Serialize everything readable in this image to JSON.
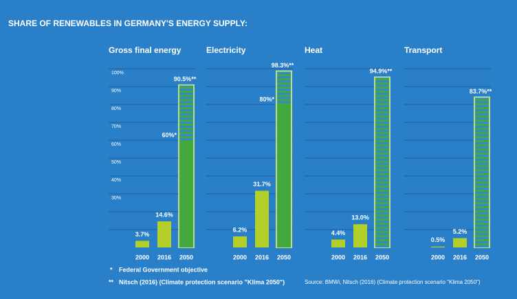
{
  "title": "SHARE OF RENEWABLES IN GERMANY'S ENERGY SUPPLY:",
  "chart_data": [
    {
      "type": "bar",
      "title": "Gross final energy",
      "categories": [
        "2000",
        "2016",
        "2050"
      ],
      "values": [
        3.7,
        14.6,
        90.5
      ],
      "value_labels": [
        "3.7%",
        "14.6%",
        "90.5%**"
      ],
      "objective": {
        "value": 60,
        "label": "60%*"
      },
      "ylim": [
        0,
        100
      ],
      "yticks": [
        {
          "value": 10,
          "label": null
        },
        {
          "value": 20,
          "label": null
        },
        {
          "value": 30,
          "label": "30%"
        },
        {
          "value": 40,
          "label": "40%"
        },
        {
          "value": 50,
          "label": "50%"
        },
        {
          "value": 60,
          "label": "60%"
        },
        {
          "value": 70,
          "label": "70%"
        },
        {
          "value": 80,
          "label": "80%"
        },
        {
          "value": 90,
          "label": "90%"
        },
        {
          "value": 100,
          "label": "100%"
        }
      ],
      "grid": true,
      "colors": [
        "#b5cf2a",
        "#b5cf2a",
        "#45a83e"
      ],
      "stripe_colors": [
        "#45a83e",
        "#3289cc"
      ]
    },
    {
      "type": "bar",
      "title": "Electricity",
      "categories": [
        "2000",
        "2016",
        "2050"
      ],
      "values": [
        6.2,
        31.7,
        98.3
      ],
      "value_labels": [
        "6.2%",
        "31.7%",
        "98.3%**"
      ],
      "objective": {
        "value": 80,
        "label": "80%*"
      },
      "ylim": [
        0,
        100
      ],
      "yticks": [
        10,
        20,
        30,
        40,
        50,
        60,
        70,
        80,
        90,
        100
      ],
      "grid": true,
      "colors": [
        "#b5cf2a",
        "#b5cf2a",
        "#45a83e"
      ],
      "stripe_colors": [
        "#45a83e",
        "#3289cc"
      ]
    },
    {
      "type": "bar",
      "title": "Heat",
      "categories": [
        "2000",
        "2016",
        "2050"
      ],
      "values": [
        4.4,
        13.0,
        94.9
      ],
      "value_labels": [
        "4.4%",
        "13.0%",
        "94.9%**"
      ],
      "ylim": [
        0,
        100
      ],
      "yticks": [
        10,
        20,
        30,
        40,
        50,
        60,
        70,
        80,
        90,
        100
      ],
      "grid": true,
      "colors": [
        "#b5cf2a",
        "#b5cf2a",
        "#45a83e"
      ],
      "stripe_colors": [
        "#45a83e",
        "#3289cc"
      ]
    },
    {
      "type": "bar",
      "title": "Transport",
      "categories": [
        "2000",
        "2016",
        "2050"
      ],
      "values": [
        0.5,
        5.2,
        83.7
      ],
      "value_labels": [
        "0.5%",
        "5.2%",
        "83.7%**"
      ],
      "ylim": [
        0,
        100
      ],
      "yticks": [
        10,
        20,
        30,
        40,
        50,
        60,
        70,
        80,
        90,
        100
      ],
      "grid": true,
      "colors": [
        "#b5cf2a",
        "#b5cf2a",
        "#45a83e"
      ],
      "stripe_colors": [
        "#45a83e",
        "#3289cc"
      ]
    }
  ],
  "footnotes": [
    {
      "mark": "*",
      "text": "Federal Government objective"
    },
    {
      "mark": "**",
      "text": "Nitsch (2016) (Climate protection scenario \"Klima 2050\")"
    }
  ],
  "source": "Source:  BMWi, Nitsch (2016) (Climate protection scenario \"Klima 2050\")"
}
